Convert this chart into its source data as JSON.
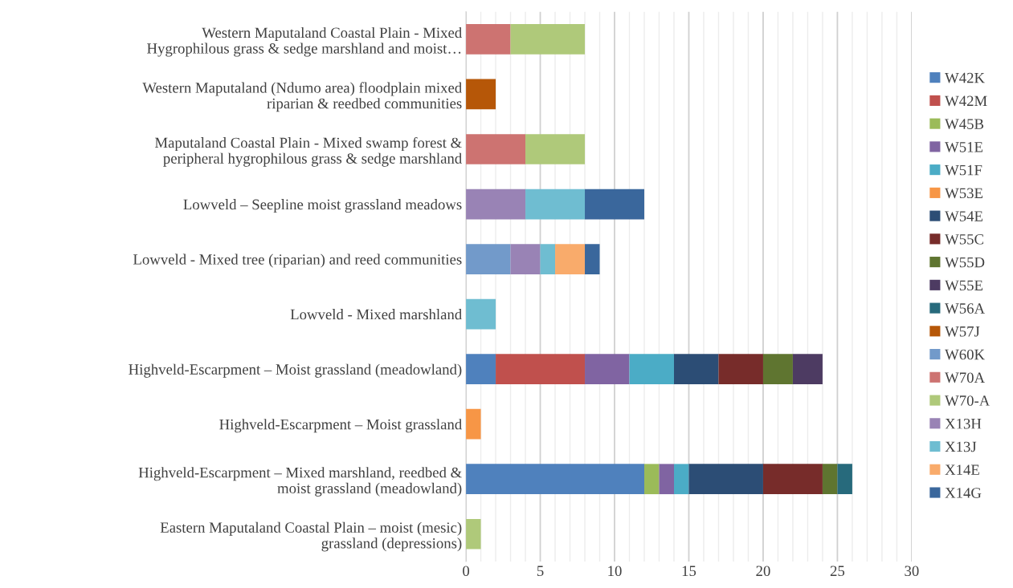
{
  "chart_data": {
    "type": "bar",
    "orientation": "horizontal",
    "stacked": true,
    "categories": [
      "Western Maputaland Coastal Plain - Mixed\nHygrophilous grass & sedge marshland and moist…",
      "Western Maputaland (Ndumo area) floodplain mixed\nriparian & reedbed communities",
      "Maputaland Coastal Plain - Mixed swamp forest &\nperipheral hygrophilous grass & sedge marshland",
      "Lowveld – Seepline moist grassland meadows",
      "Lowveld - Mixed tree (riparian) and reed communities",
      "Lowveld - Mixed marshland",
      "Highveld-Escarpment – Moist grassland (meadowland)",
      "Highveld-Escarpment – Moist grassland",
      "Highveld-Escarpment – Mixed marshland, reedbed &\nmoist grassland (meadowland)",
      "Eastern Maputaland Coastal Plain – moist (mesic)\ngrassland (depressions)"
    ],
    "series": [
      {
        "name": "W42K",
        "color": "#4f81bd",
        "values": [
          null,
          null,
          null,
          null,
          null,
          null,
          2,
          null,
          12,
          null
        ]
      },
      {
        "name": "W42M",
        "color": "#c0504d",
        "values": [
          null,
          null,
          null,
          null,
          null,
          null,
          6,
          null,
          null,
          null
        ]
      },
      {
        "name": "W45B",
        "color": "#9bbb59",
        "values": [
          null,
          null,
          null,
          null,
          null,
          null,
          null,
          null,
          1,
          null
        ]
      },
      {
        "name": "W51E",
        "color": "#8064a2",
        "values": [
          null,
          null,
          null,
          null,
          null,
          null,
          3,
          null,
          1,
          null
        ]
      },
      {
        "name": "W51F",
        "color": "#4bacc6",
        "values": [
          null,
          null,
          null,
          null,
          null,
          null,
          3,
          null,
          1,
          null
        ]
      },
      {
        "name": "W53E",
        "color": "#f79646",
        "values": [
          null,
          null,
          null,
          null,
          null,
          null,
          null,
          1,
          null,
          null
        ]
      },
      {
        "name": "W54E",
        "color": "#2c4d75",
        "values": [
          null,
          null,
          null,
          null,
          null,
          null,
          3,
          null,
          5,
          null
        ]
      },
      {
        "name": "W55C",
        "color": "#772c2a",
        "values": [
          null,
          null,
          null,
          null,
          null,
          null,
          3,
          null,
          4,
          null
        ]
      },
      {
        "name": "W55D",
        "color": "#5f7530",
        "values": [
          null,
          null,
          null,
          null,
          null,
          null,
          2,
          null,
          1,
          null
        ]
      },
      {
        "name": "W55E",
        "color": "#4d3b62",
        "values": [
          null,
          null,
          null,
          null,
          null,
          null,
          2,
          null,
          null,
          null
        ]
      },
      {
        "name": "W56A",
        "color": "#276a7c",
        "values": [
          null,
          null,
          null,
          null,
          null,
          null,
          null,
          null,
          1,
          null
        ]
      },
      {
        "name": "W57J",
        "color": "#b65708",
        "values": [
          null,
          2,
          null,
          null,
          null,
          null,
          null,
          null,
          null,
          null
        ]
      },
      {
        "name": "W60K",
        "color": "#729aca",
        "values": [
          null,
          null,
          null,
          null,
          3,
          null,
          null,
          null,
          null,
          null
        ]
      },
      {
        "name": "W70A",
        "color": "#cd7371",
        "values": [
          3,
          null,
          4,
          null,
          null,
          null,
          null,
          null,
          null,
          null
        ]
      },
      {
        "name": "W70-A",
        "color": "#afc97a",
        "values": [
          5,
          null,
          4,
          null,
          null,
          null,
          null,
          null,
          null,
          1
        ]
      },
      {
        "name": "X13H",
        "color": "#9983b5",
        "values": [
          null,
          null,
          null,
          4,
          2,
          null,
          null,
          null,
          null,
          null
        ]
      },
      {
        "name": "X13J",
        "color": "#6fbdd1",
        "values": [
          null,
          null,
          null,
          4,
          1,
          2,
          null,
          null,
          null,
          null
        ]
      },
      {
        "name": "X14E",
        "color": "#f9ab6b",
        "values": [
          null,
          null,
          null,
          null,
          2,
          null,
          null,
          null,
          null,
          null
        ]
      },
      {
        "name": "X14G",
        "color": "#3a679c",
        "values": [
          null,
          null,
          null,
          4,
          1,
          null,
          null,
          null,
          null,
          null
        ]
      }
    ],
    "xlim": [
      0,
      30
    ],
    "xticks": [
      0,
      5,
      10,
      15,
      20,
      25,
      30
    ],
    "grid": "x",
    "legend": "right"
  }
}
